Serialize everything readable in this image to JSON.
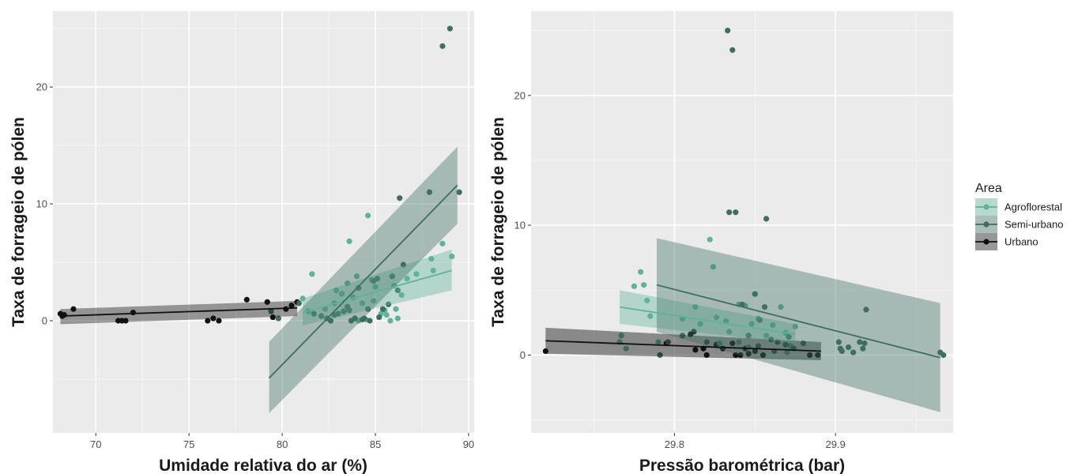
{
  "legend": {
    "title": "Area",
    "position": "right",
    "entries": [
      {
        "key": "agro",
        "label": "Agroflorestal",
        "color": "#5fb39a"
      },
      {
        "key": "semi",
        "label": "Semi-urbano",
        "color": "#3e6e62"
      },
      {
        "key": "urb",
        "label": "Urbano",
        "color": "#111111"
      }
    ]
  },
  "chart_data": [
    {
      "type": "scatter",
      "title": "",
      "xlabel": "Umidade relativa do ar (%)",
      "ylabel": "Taxa de forrageio de pólen",
      "xlim": [
        67.7,
        90.3
      ],
      "ylim": [
        -9.6,
        26.5
      ],
      "xticks": [
        70,
        75,
        80,
        85,
        90
      ],
      "yticks": [
        0,
        10,
        20
      ],
      "grid": true,
      "series": [
        {
          "key": "agro",
          "name": "Agroflorestal",
          "points": [
            [
              81.1,
              1.9
            ],
            [
              81.4,
              0.8
            ],
            [
              81.6,
              4.0
            ],
            [
              82.3,
              1.0
            ],
            [
              82.8,
              1.5
            ],
            [
              83.2,
              2.3
            ],
            [
              83.5,
              3.2
            ],
            [
              83.6,
              6.8
            ],
            [
              83.8,
              2.0
            ],
            [
              84.0,
              3.8
            ],
            [
              84.3,
              1.5
            ],
            [
              84.6,
              9.0
            ],
            [
              84.8,
              3.5
            ],
            [
              85.0,
              2.9
            ],
            [
              85.3,
              0.6
            ],
            [
              85.6,
              0.5
            ],
            [
              85.8,
              0.0
            ],
            [
              86.0,
              3.0
            ],
            [
              86.2,
              0.2
            ],
            [
              86.4,
              2.2
            ],
            [
              86.7,
              3.6
            ],
            [
              87.2,
              4.0
            ],
            [
              88.0,
              5.3
            ],
            [
              88.1,
              4.3
            ],
            [
              88.6,
              6.6
            ],
            [
              89.1,
              5.5
            ],
            [
              84.1,
              0.0
            ],
            [
              84.5,
              0.1
            ],
            [
              85.5,
              0.9
            ],
            [
              86.1,
              1.0
            ],
            [
              82.9,
              2.6
            ],
            [
              84.9,
              1.7
            ]
          ],
          "fit": {
            "x": [
              81.1,
              89.1
            ],
            "y": [
              0.7,
              4.3
            ],
            "ci_low": [
              -0.4,
              2.6
            ],
            "ci_high": [
              1.9,
              6.1
            ]
          }
        },
        {
          "key": "semi",
          "name": "Semi-urbano",
          "points": [
            [
              79.4,
              0.8
            ],
            [
              79.8,
              0.2
            ],
            [
              80.9,
              1.5
            ],
            [
              81.7,
              0.6
            ],
            [
              82.1,
              0.4
            ],
            [
              82.4,
              0.2
            ],
            [
              82.6,
              0.0
            ],
            [
              83.0,
              0.6
            ],
            [
              83.3,
              0.8
            ],
            [
              83.5,
              1.2
            ],
            [
              83.7,
              0.0
            ],
            [
              83.9,
              0.2
            ],
            [
              84.1,
              2.8
            ],
            [
              84.3,
              0.1
            ],
            [
              84.6,
              1.0
            ],
            [
              84.9,
              3.4
            ],
            [
              85.1,
              3.6
            ],
            [
              85.4,
              1.0
            ],
            [
              85.7,
              1.4
            ],
            [
              85.9,
              3.8
            ],
            [
              86.2,
              2.6
            ],
            [
              86.3,
              10.5
            ],
            [
              86.5,
              4.8
            ],
            [
              87.9,
              11.0
            ],
            [
              88.6,
              23.5
            ],
            [
              89.0,
              25.0
            ],
            [
              89.5,
              11.0
            ],
            [
              84.4,
              0.2
            ],
            [
              85.2,
              0.3
            ],
            [
              82.8,
              0.5
            ],
            [
              83.6,
              0.9
            ],
            [
              84.7,
              0.0
            ]
          ],
          "fit": {
            "x": [
              79.3,
              89.4
            ],
            "y": [
              -4.9,
              11.6
            ],
            "ci_low": [
              -7.9,
              8.3
            ],
            "ci_high": [
              -1.8,
              14.9
            ]
          }
        },
        {
          "key": "urb",
          "name": "Urbano",
          "points": [
            [
              68.1,
              0.6
            ],
            [
              68.2,
              0.4
            ],
            [
              68.3,
              0.5
            ],
            [
              68.8,
              1.0
            ],
            [
              71.2,
              0.0
            ],
            [
              71.4,
              0.0
            ],
            [
              71.6,
              0.0
            ],
            [
              72.0,
              0.7
            ],
            [
              76.0,
              0.0
            ],
            [
              76.3,
              0.2
            ],
            [
              76.6,
              0.0
            ],
            [
              78.1,
              1.8
            ],
            [
              79.2,
              1.6
            ],
            [
              79.5,
              0.3
            ],
            [
              80.2,
              1.0
            ],
            [
              80.5,
              1.3
            ],
            [
              80.8,
              1.6
            ]
          ],
          "fit": {
            "x": [
              68.1,
              80.8
            ],
            "y": [
              0.4,
              1.1
            ],
            "ci_low": [
              -0.3,
              0.4
            ],
            "ci_high": [
              1.0,
              1.7
            ]
          }
        }
      ]
    },
    {
      "type": "scatter",
      "title": "",
      "xlabel": "Pressão barométrica (bar)",
      "ylabel": "Taxa de forrageio de pólen",
      "xlim": [
        29.711,
        29.973
      ],
      "ylim": [
        -6.0,
        26.5
      ],
      "xticks": [
        29.8,
        29.9
      ],
      "yticks": [
        0,
        10,
        20
      ],
      "grid": true,
      "series": [
        {
          "key": "agro",
          "name": "Agroflorestal",
          "points": [
            [
              29.766,
              1.0
            ],
            [
              29.767,
              1.5
            ],
            [
              29.77,
              0.5
            ],
            [
              29.775,
              5.3
            ],
            [
              29.779,
              6.4
            ],
            [
              29.781,
              5.4
            ],
            [
              29.783,
              4.2
            ],
            [
              29.785,
              3.0
            ],
            [
              29.79,
              1.0
            ],
            [
              29.805,
              2.8
            ],
            [
              29.813,
              3.7
            ],
            [
              29.816,
              2.4
            ],
            [
              29.822,
              8.9
            ],
            [
              29.824,
              6.8
            ],
            [
              29.826,
              2.9
            ],
            [
              29.832,
              2.6
            ],
            [
              29.84,
              3.9
            ],
            [
              29.844,
              3.8
            ],
            [
              29.848,
              2.4
            ],
            [
              29.852,
              2.8
            ],
            [
              29.857,
              1.5
            ],
            [
              29.861,
              2.3
            ],
            [
              29.866,
              3.7
            ],
            [
              29.869,
              1.7
            ],
            [
              29.872,
              0.7
            ],
            [
              29.875,
              2.2
            ],
            [
              29.864,
              1.0
            ],
            [
              29.87,
              0.2
            ],
            [
              29.834,
              1.8
            ],
            [
              29.84,
              1.0
            ],
            [
              29.846,
              0.6
            ],
            [
              29.828,
              0.9
            ]
          ],
          "fit": {
            "x": [
              29.766,
              29.875
            ],
            "y": [
              3.7,
              1.6
            ],
            "ci_low": [
              2.4,
              0.9
            ],
            "ci_high": [
              5.0,
              2.4
            ]
          }
        },
        {
          "key": "semi",
          "name": "Semi-urbano",
          "points": [
            [
              29.791,
              0.0
            ],
            [
              29.796,
              1.0
            ],
            [
              29.805,
              1.5
            ],
            [
              29.82,
              1.0
            ],
            [
              29.833,
              25.0
            ],
            [
              29.834,
              11.0
            ],
            [
              29.836,
              23.5
            ],
            [
              29.838,
              11.0
            ],
            [
              29.842,
              3.9
            ],
            [
              29.846,
              1.5
            ],
            [
              29.85,
              4.7
            ],
            [
              29.853,
              2.7
            ],
            [
              29.856,
              3.7
            ],
            [
              29.857,
              10.5
            ],
            [
              29.86,
              1.2
            ],
            [
              29.864,
              1.0
            ],
            [
              29.869,
              0.8
            ],
            [
              29.871,
              1.4
            ],
            [
              29.874,
              0.5
            ],
            [
              29.88,
              0.9
            ],
            [
              29.902,
              1.0
            ],
            [
              29.903,
              0.5
            ],
            [
              29.904,
              0.3
            ],
            [
              29.908,
              0.6
            ],
            [
              29.911,
              0.2
            ],
            [
              29.915,
              1.0
            ],
            [
              29.917,
              0.5
            ],
            [
              29.918,
              0.9
            ],
            [
              29.919,
              3.5
            ],
            [
              29.965,
              0.2
            ],
            [
              29.967,
              0.0
            ],
            [
              29.852,
              0.7
            ],
            [
              29.862,
              0.3
            ]
          ],
          "fit": {
            "x": [
              29.789,
              29.965
            ],
            "y": [
              5.4,
              -0.2
            ],
            "ci_low": [
              1.8,
              -4.4
            ],
            "ci_high": [
              9.0,
              4.0
            ]
          }
        },
        {
          "key": "urb",
          "name": "Urbano",
          "points": [
            [
              29.72,
              0.3
            ],
            [
              29.795,
              0.9
            ],
            [
              29.81,
              1.6
            ],
            [
              29.812,
              1.8
            ],
            [
              29.813,
              0.4
            ],
            [
              29.818,
              0.5
            ],
            [
              29.82,
              0.0
            ],
            [
              29.826,
              0.8
            ],
            [
              29.83,
              0.5
            ],
            [
              29.836,
              0.9
            ],
            [
              29.838,
              0.0
            ],
            [
              29.841,
              0.0
            ],
            [
              29.844,
              0.5
            ],
            [
              29.846,
              0.1
            ],
            [
              29.85,
              0.3
            ],
            [
              29.855,
              0.0
            ],
            [
              29.884,
              0.0
            ],
            [
              29.889,
              0.0
            ]
          ],
          "fit": {
            "x": [
              29.72,
              29.891
            ],
            "y": [
              1.1,
              0.3
            ],
            "ci_low": [
              0.1,
              -0.4
            ],
            "ci_high": [
              2.1,
              1.0
            ]
          }
        }
      ]
    }
  ]
}
